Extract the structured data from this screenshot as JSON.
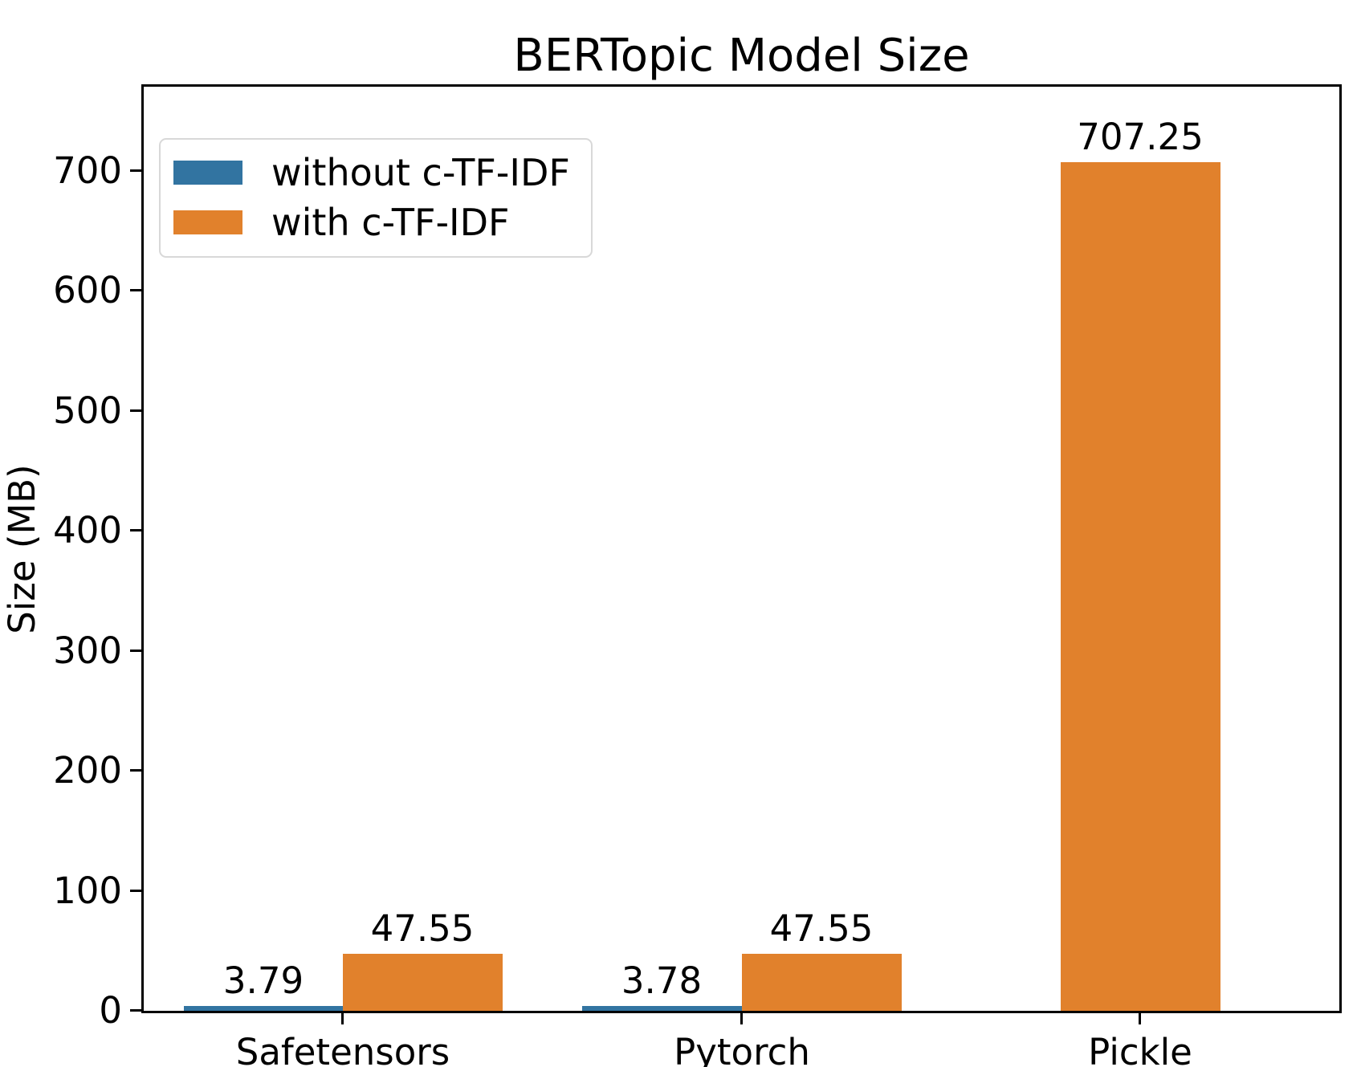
{
  "chart_data": {
    "type": "bar",
    "title": "BERTopic Model Size",
    "ylabel": "Size (MB)",
    "xlabel": "",
    "categories": [
      "Safetensors",
      "Pytorch",
      "Pickle"
    ],
    "series": [
      {
        "name": "without c-TF-IDF",
        "color": "#3274a1",
        "values": [
          3.79,
          3.78,
          null
        ],
        "bar_labels": [
          "3.79",
          "3.78",
          null
        ]
      },
      {
        "name": "with c-TF-IDF",
        "color": "#e1812c",
        "values": [
          47.55,
          47.55,
          707.25
        ],
        "bar_labels": [
          "47.55",
          "47.55",
          "707.25"
        ]
      }
    ],
    "ylim": [
      0,
      770
    ],
    "yticks": [
      0,
      100,
      200,
      300,
      400,
      500,
      600,
      700
    ],
    "bar_width_frac": 0.4,
    "legend_position": "upper left",
    "grid": false,
    "background_color": "#ffffff",
    "text_color": "#000000"
  }
}
